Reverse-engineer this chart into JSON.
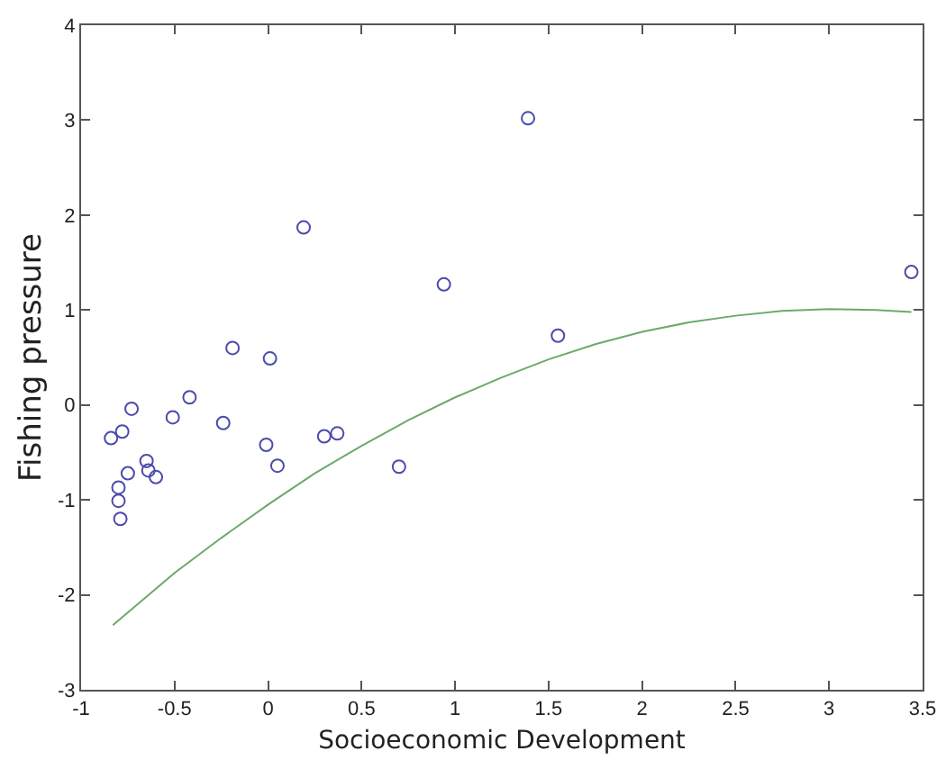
{
  "chart_data": {
    "type": "scatter",
    "xlabel": "Socioeconomic Development",
    "ylabel": "Fishing pressure",
    "xlim": [
      -1,
      3.5
    ],
    "xticks": [
      -1,
      -0.5,
      0,
      0.5,
      1,
      1.5,
      2,
      2.5,
      3,
      3.5
    ],
    "ylim": [
      -3,
      4
    ],
    "yticks": [
      -3,
      -2,
      -1,
      0,
      1,
      2,
      3,
      4
    ],
    "grid": false,
    "series": [
      {
        "marker": "circle",
        "color": "#4b4bab",
        "x": [
          -0.19,
          0.01,
          -0.42,
          -0.73,
          -0.51,
          -0.24,
          -0.84,
          -0.78,
          -0.01,
          0.3,
          0.37,
          -0.65,
          -0.64,
          -0.6,
          0.05,
          0.7,
          -0.75,
          -0.8,
          -0.8,
          -0.79,
          1.39,
          0.19,
          0.94,
          1.55,
          3.44
        ],
        "values": [
          0.6,
          0.49,
          0.08,
          -0.04,
          -0.13,
          -0.19,
          -0.35,
          -0.28,
          -0.42,
          -0.33,
          -0.3,
          -0.59,
          -0.69,
          -0.76,
          -0.64,
          -0.65,
          -0.72,
          -0.87,
          -1.01,
          -1.2,
          3.02,
          1.87,
          1.27,
          0.73,
          1.4
        ]
      },
      {
        "type": "line",
        "marker": "none",
        "color": "#6aaa6a",
        "line_style": "solid",
        "x": [
          -0.83,
          -0.5,
          -0.25,
          0,
          0.25,
          0.5,
          0.75,
          1,
          1.25,
          1.5,
          1.75,
          2,
          2.25,
          2.5,
          2.75,
          3,
          3.25,
          3.44
        ],
        "values": [
          -2.32,
          -1.77,
          -1.4,
          -1.05,
          -0.72,
          -0.43,
          -0.16,
          0.08,
          0.29,
          0.48,
          0.64,
          0.77,
          0.87,
          0.94,
          0.99,
          1.01,
          1.0,
          0.98
        ]
      }
    ]
  }
}
